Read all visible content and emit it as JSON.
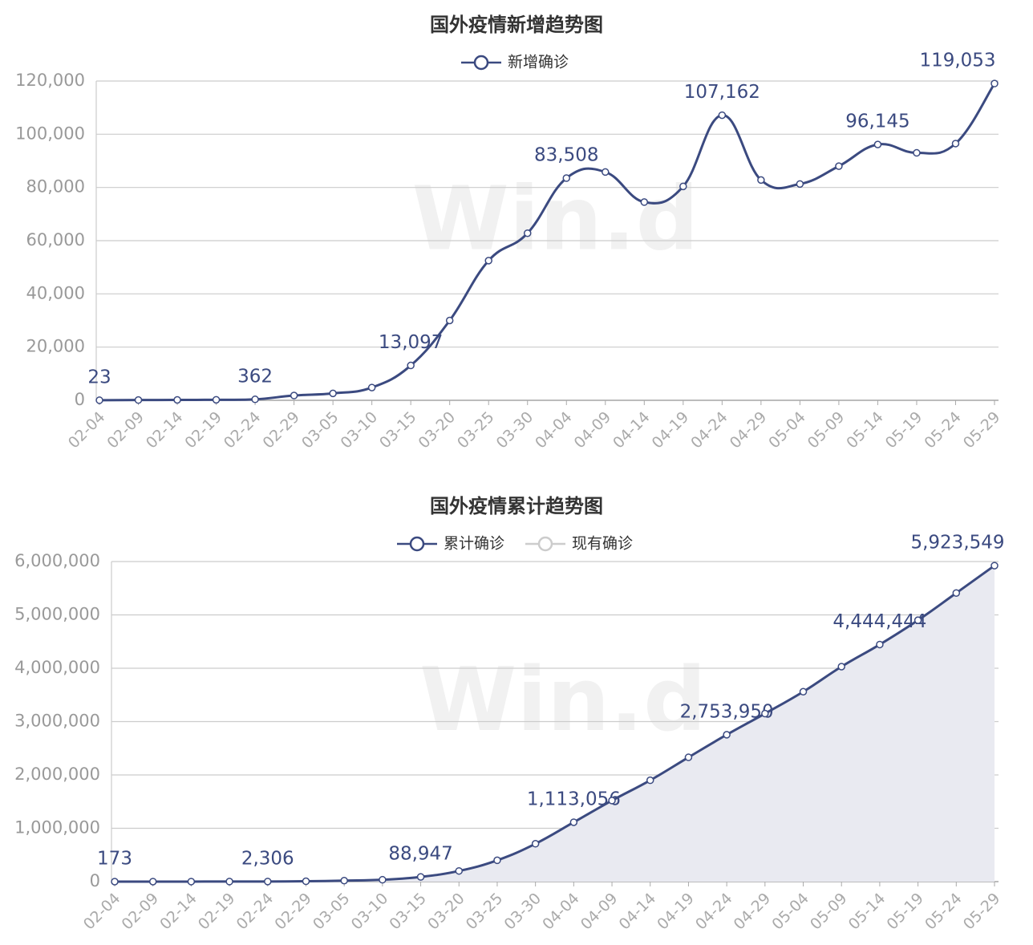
{
  "chart_data": [
    {
      "type": "line",
      "title": "国外疫情新增趋势图",
      "watermark": "Win.d",
      "categories": [
        "02-04",
        "02-09",
        "02-14",
        "02-19",
        "02-24",
        "02-29",
        "03-05",
        "03-10",
        "03-15",
        "03-20",
        "03-25",
        "03-30",
        "04-04",
        "04-09",
        "04-14",
        "04-19",
        "04-24",
        "04-29",
        "05-04",
        "05-09",
        "05-14",
        "05-19",
        "05-24",
        "05-29"
      ],
      "series": [
        {
          "name": "新增确诊",
          "color": "#3b4a80",
          "values": [
            23,
            100,
            150,
            200,
            362,
            1800,
            2600,
            4800,
            13097,
            30000,
            52500,
            62800,
            83508,
            85800,
            74500,
            80400,
            107162,
            82800,
            81300,
            88000,
            96145,
            93000,
            96500,
            119053
          ],
          "value_labels": [
            "23",
            null,
            null,
            null,
            "362",
            null,
            null,
            null,
            "13,097",
            null,
            null,
            null,
            "83,508",
            null,
            null,
            null,
            "107,162",
            null,
            null,
            null,
            "96,145",
            null,
            null,
            "119,053"
          ]
        }
      ],
      "ylim": [
        0,
        120000
      ],
      "yticks": [
        0,
        {
          "value": 20000,
          "label": "20,000"
        },
        {
          "value": 40000,
          "label": "40,000"
        },
        {
          "value": 60000,
          "label": "60,000"
        },
        {
          "value": 80000,
          "label": "80,000"
        },
        {
          "value": 100000,
          "label": "100,000"
        },
        {
          "value": 120000,
          "label": "120,000"
        }
      ],
      "grid": true,
      "area": false
    },
    {
      "type": "line",
      "title": "国外疫情累计趋势图",
      "watermark": "Win.d",
      "categories": [
        "02-04",
        "02-09",
        "02-14",
        "02-19",
        "02-24",
        "02-29",
        "03-05",
        "03-10",
        "03-15",
        "03-20",
        "03-25",
        "03-30",
        "04-04",
        "04-09",
        "04-14",
        "04-19",
        "04-24",
        "04-29",
        "05-04",
        "05-09",
        "05-14",
        "05-19",
        "05-24",
        "05-29"
      ],
      "series": [
        {
          "name": "累计确诊",
          "color": "#3b4a80",
          "values": [
            173,
            400,
            900,
            1500,
            2306,
            7000,
            19000,
            35000,
            88947,
            200000,
            400000,
            710000,
            1113056,
            1520000,
            1900000,
            2330000,
            2753950,
            3150000,
            3560000,
            4030000,
            4444444,
            4900000,
            5410000,
            5923549
          ],
          "value_labels": [
            "173",
            null,
            null,
            null,
            "2,306",
            null,
            null,
            null,
            "88,947",
            null,
            null,
            null,
            "1,113,056",
            null,
            null,
            null,
            "2,753,950",
            null,
            null,
            null,
            "4,444,444",
            null,
            null,
            "5,923,549"
          ]
        },
        {
          "name": "现有确诊",
          "color": "#cccccc",
          "visible": false
        }
      ],
      "ylim": [
        0,
        6000000
      ],
      "yticks": [
        0,
        {
          "value": 1000000,
          "label": "1,000,000"
        },
        {
          "value": 2000000,
          "label": "2,000,000"
        },
        {
          "value": 3000000,
          "label": "3,000,000"
        },
        {
          "value": 4000000,
          "label": "4,000,000"
        },
        {
          "value": 5000000,
          "label": "5,000,000"
        },
        {
          "value": 6000000,
          "label": "6,000,000"
        }
      ],
      "grid": true,
      "area": true,
      "area_color": "#e9eaf1"
    }
  ]
}
